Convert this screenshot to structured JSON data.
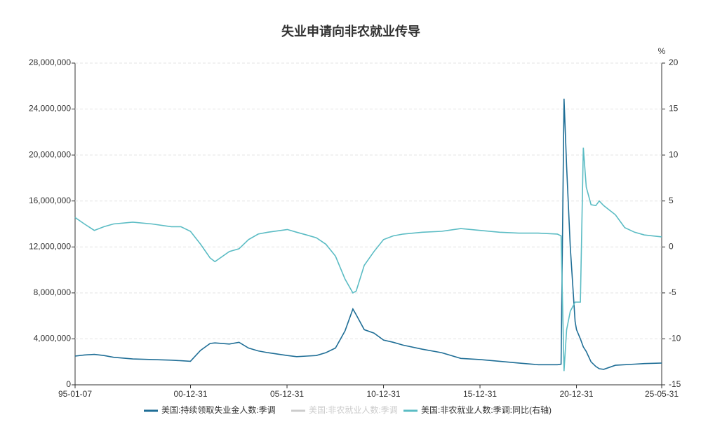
{
  "chart_data": {
    "type": "line",
    "title": "失业申请向非农就业传导",
    "y2label": "%",
    "x": [
      "95-01-07",
      "95-07-01",
      "96-01-06",
      "96-07-06",
      "97-01-04",
      "98-01-03",
      "99-01-02",
      "00-01-01",
      "00-07-01",
      "00-12-30",
      "01-07-07",
      "02-01-05",
      "02-04-06",
      "03-01-04",
      "03-07-05",
      "04-01-03",
      "04-07-03",
      "05-01-01",
      "06-01-07",
      "06-07-01",
      "07-01-06",
      "07-07-07",
      "08-01-05",
      "08-07-05",
      "09-01-03",
      "09-05-30",
      "09-08-01",
      "10-01-02",
      "10-07-03",
      "11-01-01",
      "11-07-02",
      "12-01-07",
      "13-01-05",
      "14-01-04",
      "15-01-03",
      "16-01-02",
      "17-01-07",
      "18-01-06",
      "19-01-05",
      "20-01-04",
      "20-03-14",
      "20-05-09",
      "20-06-27",
      "20-09-05",
      "20-12-05",
      "21-01-02",
      "21-03-13",
      "21-05-08",
      "21-07-03",
      "21-10-02",
      "22-01-01",
      "22-03-05",
      "22-05-28",
      "23-01-07",
      "23-07-01",
      "24-01-06",
      "24-07-06",
      "25-05-31"
    ],
    "xlim": [
      "95-01-07",
      "25-05-31"
    ],
    "xticks": [
      "95-01-07",
      "00-12-31",
      "05-12-31",
      "10-12-31",
      "15-12-31",
      "20-12-31",
      "25-05-31"
    ],
    "series": [
      {
        "name": "美国:持续领取失业金人数:季调",
        "color": "#1f6e96",
        "values": [
          2500000,
          2600000,
          2650000,
          2550000,
          2400000,
          2250000,
          2200000,
          2150000,
          2100000,
          2050000,
          3000000,
          3600000,
          3650000,
          3550000,
          3700000,
          3200000,
          2950000,
          2800000,
          2550000,
          2450000,
          2500000,
          2550000,
          2800000,
          3200000,
          4700000,
          6600000,
          6100000,
          4800000,
          4500000,
          3900000,
          3700000,
          3450000,
          3100000,
          2800000,
          2300000,
          2200000,
          2050000,
          1900000,
          1750000,
          1750000,
          1800000,
          24900000,
          19000000,
          12000000,
          5500000,
          4800000,
          4000000,
          3300000,
          2900000,
          2000000,
          1600000,
          1400000,
          1350000,
          1700000,
          1750000,
          1800000,
          1850000,
          1900000
        ]
      },
      {
        "name": "美国:非农就业人数:季调:同比(右轴)",
        "color": "#5bbcc4",
        "axis": "y2",
        "values": [
          3.2,
          2.5,
          1.8,
          2.2,
          2.5,
          2.7,
          2.5,
          2.2,
          2.2,
          1.7,
          0.3,
          -1.2,
          -1.6,
          -0.5,
          -0.2,
          0.8,
          1.4,
          1.6,
          1.9,
          1.6,
          1.3,
          1.0,
          0.3,
          -1.0,
          -3.5,
          -5.0,
          -4.8,
          -2.0,
          -0.5,
          0.8,
          1.2,
          1.4,
          1.6,
          1.7,
          2.0,
          1.8,
          1.6,
          1.5,
          1.5,
          1.4,
          1.2,
          -13.5,
          -9.0,
          -7.0,
          -6.0,
          -6.0,
          -6.0,
          10.8,
          6.5,
          4.6,
          4.5,
          5.0,
          4.5,
          3.5,
          2.1,
          1.6,
          1.3,
          1.1
        ]
      }
    ],
    "hidden_series": [
      {
        "name": "美国:非农就业人数:季调",
        "color": "#cccccc"
      }
    ],
    "ylim": [
      0,
      28000000
    ],
    "yticks": [
      0,
      {
        "value": 4000000,
        "label": "4,000,000"
      },
      {
        "value": 8000000,
        "label": "8,000,000"
      },
      {
        "value": 12000000,
        "label": "12,000,000"
      },
      {
        "value": 16000000,
        "label": "16,000,000"
      },
      {
        "value": 20000000,
        "label": "20,000,000"
      },
      {
        "value": 24000000,
        "label": "24,000,000"
      },
      {
        "value": 28000000,
        "label": "28,000,000"
      }
    ],
    "y2lim": [
      -15,
      20
    ],
    "y2ticks": [
      -15,
      -10,
      -5,
      0,
      5,
      10,
      15,
      20
    ],
    "grid": true
  }
}
